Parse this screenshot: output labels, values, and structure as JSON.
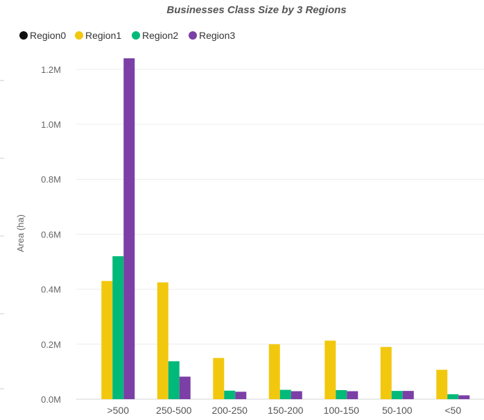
{
  "chart_data": {
    "type": "bar",
    "title": "Businesses Class Size by  3 Regions",
    "xlabel": "",
    "ylabel": "Area (ha)",
    "ylim": [
      0,
      1240000
    ],
    "yticks": [
      {
        "value": 0,
        "label": "0.0M"
      },
      {
        "value": 200000,
        "label": "0.2M"
      },
      {
        "value": 400000,
        "label": "0.4M"
      },
      {
        "value": 600000,
        "label": "0.6M"
      },
      {
        "value": 800000,
        "label": "0.8M"
      },
      {
        "value": 1000000,
        "label": "1.0M"
      },
      {
        "value": 1200000,
        "label": "1.2M"
      }
    ],
    "grid": true,
    "legend_position": "top-left",
    "categories": [
      ">500",
      "250-500",
      "200-250",
      "150-200",
      "100-150",
      "50-100",
      "<50"
    ],
    "series": [
      {
        "name": "Region0",
        "color": "#111111",
        "values": [
          0,
          0,
          0,
          0,
          0,
          0,
          0
        ]
      },
      {
        "name": "Region1",
        "color": "#F2C80F",
        "values": [
          430000,
          425000,
          150000,
          200000,
          213000,
          190000,
          107000
        ]
      },
      {
        "name": "Region2",
        "color": "#01B979",
        "values": [
          520000,
          138000,
          31000,
          34000,
          33000,
          30000,
          18000
        ]
      },
      {
        "name": "Region3",
        "color": "#7B3FA6",
        "values": [
          1240000,
          82000,
          27000,
          29000,
          29000,
          30000,
          14000
        ]
      }
    ]
  }
}
